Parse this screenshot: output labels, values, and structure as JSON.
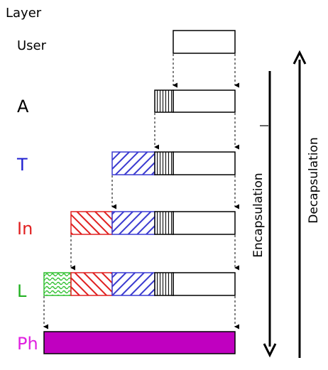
{
  "header": {
    "title": "Layer"
  },
  "layers": [
    {
      "id": "user",
      "label": "User",
      "color": "#000000"
    },
    {
      "id": "a",
      "label": "A",
      "color": "#000000"
    },
    {
      "id": "t",
      "label": "T",
      "color": "#1f1fd0"
    },
    {
      "id": "in",
      "label": "In",
      "color": "#e02020"
    },
    {
      "id": "l",
      "label": "L",
      "color": "#20b020"
    },
    {
      "id": "ph",
      "label": "Ph",
      "color": "#e020e0"
    }
  ],
  "arrows": {
    "encapsulation": "Encapsulation",
    "decapsulation": "Decapsulation"
  },
  "colors": {
    "transport_header": "#3a3ad0",
    "network_header": "#e02020",
    "link_header": "#30c030",
    "physical": "#c000c0",
    "stroke": "#000000"
  }
}
